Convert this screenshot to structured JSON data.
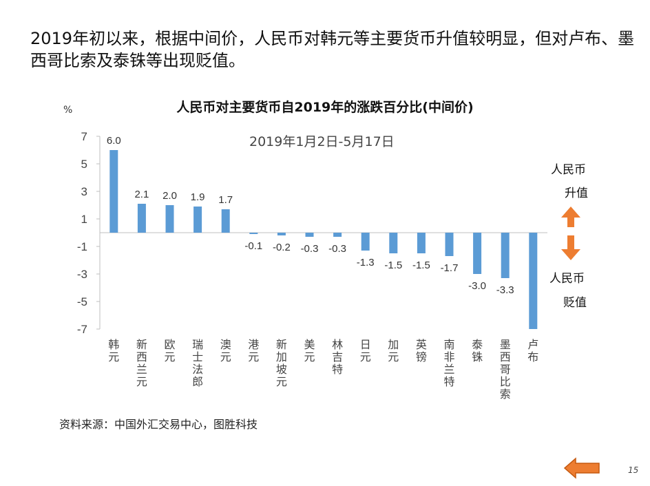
{
  "headline": "2019年初以来，根据中间价，人民币对韩元等主要货币升值较明显，但对卢布、墨西哥比索及泰铢等出现贬值。",
  "source": "资料来源：中国外汇交易中心，图胜科技",
  "page_number": "15",
  "annotations": {
    "appreciate_line1": "人民币",
    "appreciate_line2": "升值",
    "depreciate_line1": "人民币",
    "depreciate_line2": "贬值"
  },
  "colors": {
    "bar": "#5b9bd5",
    "arrow": "#ed7d31",
    "axis": "#bfbfbf"
  },
  "icons": {
    "back": "left-arrow-icon",
    "appreciate": "up-arrow-icon",
    "depreciate": "down-arrow-icon"
  },
  "chart_data": {
    "type": "bar",
    "title": "人民币对主要货币自2019年的涨跌百分比(中间价)",
    "subtitle": "2019年1月2日-5月17日",
    "ylabel": "%",
    "ylim": [
      -7,
      7
    ],
    "yticks": [
      7,
      5,
      3,
      1,
      -1,
      -3,
      -5,
      -7
    ],
    "categories": [
      "韩元",
      "新西兰元",
      "欧元",
      "瑞士法郎",
      "澳元",
      "港元",
      "新加坡元",
      "美元",
      "林吉特",
      "日元",
      "加元",
      "英镑",
      "南非兰特",
      "泰铢",
      "墨西哥比索",
      "卢布"
    ],
    "values": [
      6.0,
      2.1,
      2.0,
      1.9,
      1.7,
      -0.1,
      -0.2,
      -0.3,
      -0.3,
      -1.3,
      -1.5,
      -1.5,
      -1.7,
      -3.0,
      -3.3,
      -7.0
    ],
    "value_labels": [
      "6.0",
      "2.1",
      "2.0",
      "1.9",
      "1.7",
      "-0.1",
      "-0.2",
      "-0.3",
      "-0.3",
      "-1.3",
      "-1.5",
      "-1.5",
      "-1.7",
      "-3.0",
      "-3.3",
      ""
    ]
  }
}
